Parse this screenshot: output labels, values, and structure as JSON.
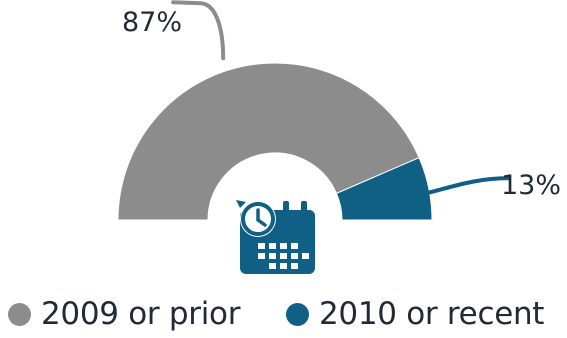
{
  "chart_data": {
    "type": "pie",
    "variant": "half-donut",
    "title": "",
    "series": [
      {
        "name": "2009 or prior",
        "value": 87,
        "label": "87%",
        "color": "#8c8c8c"
      },
      {
        "name": "2010 or recent",
        "value": 13,
        "label": "13%",
        "color": "#105f84"
      }
    ],
    "legend": "bottom"
  },
  "icon": {
    "name": "calendar-clock-icon",
    "color": "#105f84"
  }
}
